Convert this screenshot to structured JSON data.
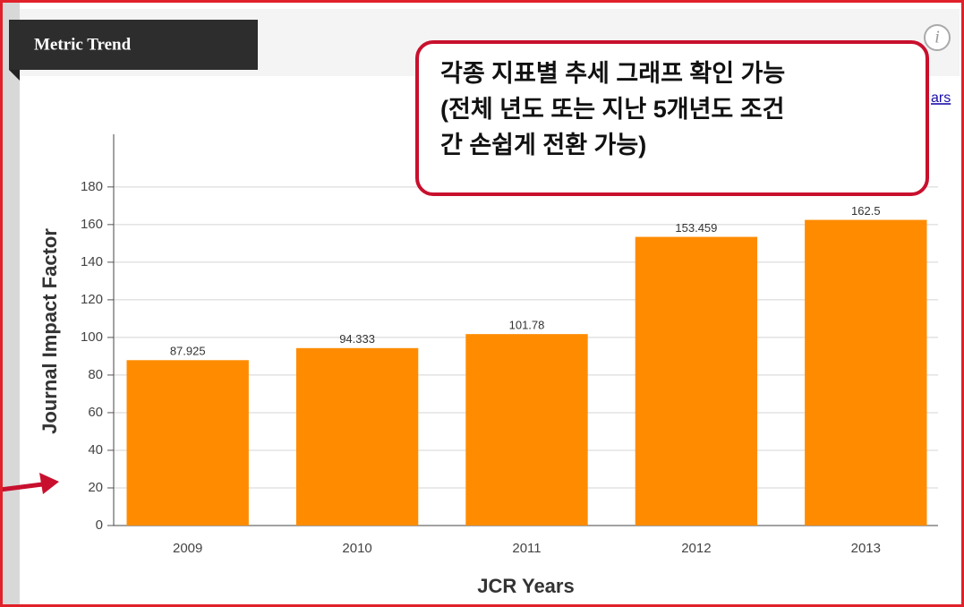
{
  "header": {
    "title": "Metric Trend"
  },
  "info_icon": "i",
  "link": "ars",
  "annotation": {
    "lines": [
      "각종 지표별 추세 그래프 확인 가능",
      "(전체 년도 또는 지난 5개년도 조건",
      "간 손쉽게 전환 가능)"
    ]
  },
  "chart_data": {
    "type": "bar",
    "y_label": "Journal Impact Factor",
    "x_label": "JCR Years",
    "categories": [
      "2009",
      "2010",
      "2011",
      "2012",
      "2013"
    ],
    "values": [
      87.925,
      94.333,
      101.78,
      153.459,
      162.5
    ],
    "color": "#ff8c00",
    "ylim": [
      0,
      208
    ],
    "yticks": [
      0,
      20,
      40,
      60,
      80,
      100,
      120,
      140,
      160,
      180
    ],
    "grid": true
  }
}
